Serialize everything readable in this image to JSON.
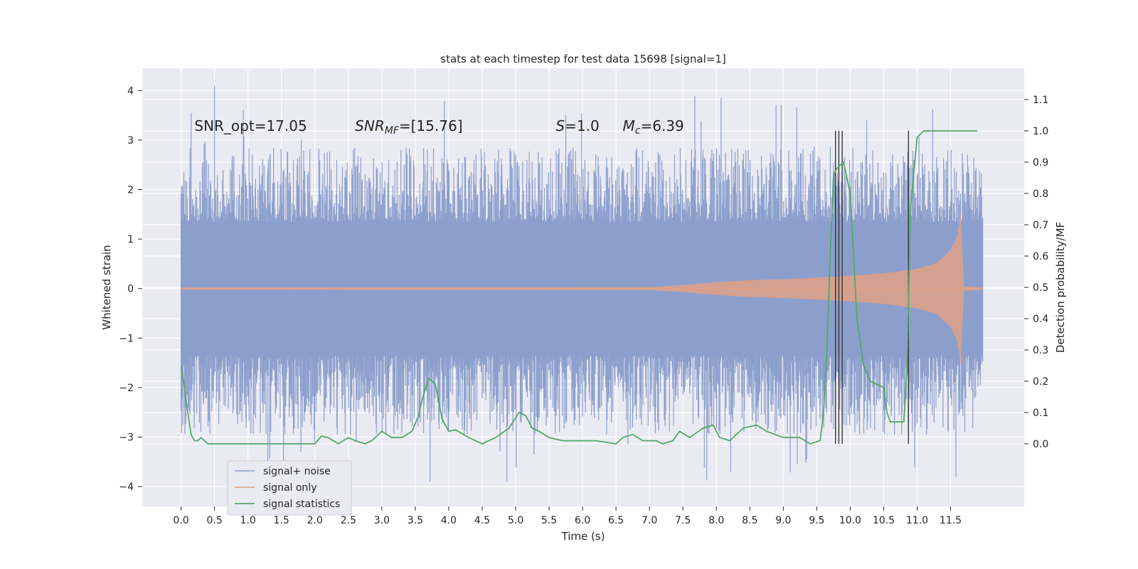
{
  "chart_data": {
    "type": "line",
    "title": "stats at each timestep for test data 15698 [signal=1]",
    "xlabel": "Time (s)",
    "ylabel": "Whitened strain",
    "ylabel_right": "Detection probability/MF",
    "xlim": [
      -0.58,
      12.6
    ],
    "ylim": [
      -4.4,
      4.45
    ],
    "ylim_right": [
      -0.2,
      1.2
    ],
    "xticks": [
      0.0,
      0.5,
      1.0,
      1.5,
      2.0,
      2.5,
      3.0,
      3.5,
      4.0,
      4.5,
      5.0,
      5.5,
      6.0,
      6.5,
      7.0,
      7.5,
      8.0,
      8.5,
      9.0,
      9.5,
      10.0,
      10.5,
      11.0,
      11.5
    ],
    "xtick_labels": [
      "0.0",
      "0.5",
      "1.0",
      "1.5",
      "2.0",
      "2.5",
      "3.0",
      "3.5",
      "4.0",
      "4.5",
      "5.0",
      "5.5",
      "6.0",
      "6.5",
      "7.0",
      "7.5",
      "8.0",
      "8.5",
      "9.0",
      "9.5",
      "10.0",
      "10.5",
      "11.0",
      "11.5"
    ],
    "yticks": [
      4,
      3,
      2,
      1,
      0,
      -1,
      -2,
      -3,
      -4
    ],
    "ytick_labels": [
      "4",
      "3",
      "2",
      "1",
      "0",
      "−1",
      "−2",
      "−3",
      "−4"
    ],
    "yticks_right": [
      1.1,
      1.0,
      0.9,
      0.8,
      0.7,
      0.6,
      0.5,
      0.4,
      0.3,
      0.2,
      0.1,
      0.0
    ],
    "ytick_labels_right": [
      "1.1",
      "1.0",
      "0.9",
      "0.8",
      "0.7",
      "0.6",
      "0.5",
      "0.4",
      "0.3",
      "0.2",
      "0.1",
      "0.0"
    ],
    "grid": true,
    "legend_position": "lower-left",
    "series": [
      {
        "name": "signal+ noise",
        "color": "#8c9fcc",
        "t_range": [
          0.0,
          11.98
        ],
        "core_amplitude": 1.35,
        "spike_max": 4.1,
        "spike_min": -3.9
      },
      {
        "name": "signal only",
        "color": "#e0a085",
        "envelope": {
          "t": [
            0.0,
            7.0,
            7.5,
            8.0,
            8.5,
            9.0,
            9.5,
            10.0,
            10.5,
            11.0,
            11.3,
            11.5,
            11.6,
            11.65,
            11.7,
            11.98
          ],
          "amp": [
            0.02,
            0.03,
            0.07,
            0.13,
            0.17,
            0.19,
            0.22,
            0.26,
            0.31,
            0.4,
            0.52,
            0.78,
            1.05,
            1.55,
            0.05,
            0.02
          ]
        }
      },
      {
        "name": "signal statistics",
        "color": "#55a868",
        "axis": "right",
        "x": [
          0.0,
          0.05,
          0.1,
          0.15,
          0.2,
          0.25,
          0.3,
          0.35,
          0.4,
          0.45,
          0.5,
          0.7,
          1.0,
          1.3,
          1.5,
          1.7,
          2.0,
          2.1,
          2.2,
          2.35,
          2.5,
          2.6,
          2.75,
          2.85,
          3.0,
          3.15,
          3.3,
          3.45,
          3.55,
          3.6,
          3.7,
          3.8,
          3.9,
          4.0,
          4.1,
          4.3,
          4.5,
          4.7,
          4.9,
          5.05,
          5.15,
          5.25,
          5.35,
          5.5,
          5.7,
          5.9,
          6.2,
          6.5,
          6.6,
          6.75,
          6.9,
          7.1,
          7.2,
          7.35,
          7.45,
          7.6,
          7.8,
          7.95,
          8.05,
          8.2,
          8.4,
          8.6,
          8.75,
          9.0,
          9.25,
          9.4,
          9.55,
          9.6,
          9.65,
          9.7,
          9.75,
          9.8,
          9.9,
          10.0,
          10.05,
          10.1,
          10.2,
          10.3,
          10.4,
          10.5,
          10.55,
          10.6,
          10.65,
          10.8,
          10.85,
          10.9,
          11.0,
          11.1,
          11.5,
          11.9
        ],
        "y": [
          0.25,
          0.18,
          0.1,
          0.03,
          0.01,
          0.01,
          0.02,
          0.01,
          0.0,
          0.0,
          0.0,
          0.0,
          0.0,
          0.0,
          0.0,
          0.0,
          0.0,
          0.025,
          0.02,
          0.0,
          0.02,
          0.01,
          0.0,
          0.01,
          0.04,
          0.02,
          0.02,
          0.04,
          0.09,
          0.14,
          0.21,
          0.19,
          0.08,
          0.04,
          0.045,
          0.02,
          0.0,
          0.02,
          0.05,
          0.1,
          0.09,
          0.05,
          0.04,
          0.02,
          0.01,
          0.01,
          0.01,
          0.0,
          0.02,
          0.03,
          0.01,
          0.01,
          0.0,
          0.01,
          0.04,
          0.02,
          0.05,
          0.06,
          0.02,
          0.01,
          0.05,
          0.06,
          0.04,
          0.02,
          0.02,
          0.0,
          0.01,
          0.1,
          0.3,
          0.6,
          0.86,
          0.88,
          0.9,
          0.8,
          0.6,
          0.4,
          0.25,
          0.2,
          0.19,
          0.18,
          0.1,
          0.07,
          0.07,
          0.07,
          0.25,
          0.75,
          0.98,
          1.0,
          1.0,
          1.0
        ]
      }
    ],
    "vlines": [
      9.78,
      9.83,
      9.88,
      10.87
    ],
    "annotations": [
      {
        "text": "SNR_opt=17.05",
        "x": 0.2,
        "y": 1.0
      },
      {
        "text_main": "SNR",
        "text_sub": "MF",
        "text_tail": "=[15.76]",
        "x": 2.6,
        "y": 1.0
      },
      {
        "text_main": "S",
        "text_tail": "=1.0",
        "x": 5.6,
        "y": 1.0
      },
      {
        "text_main": "M",
        "text_sub": "c",
        "text_tail": "=6.39",
        "x": 6.6,
        "y": 1.0
      }
    ],
    "legend_entries": [
      "signal+ noise",
      "signal only",
      "signal statistics"
    ]
  }
}
